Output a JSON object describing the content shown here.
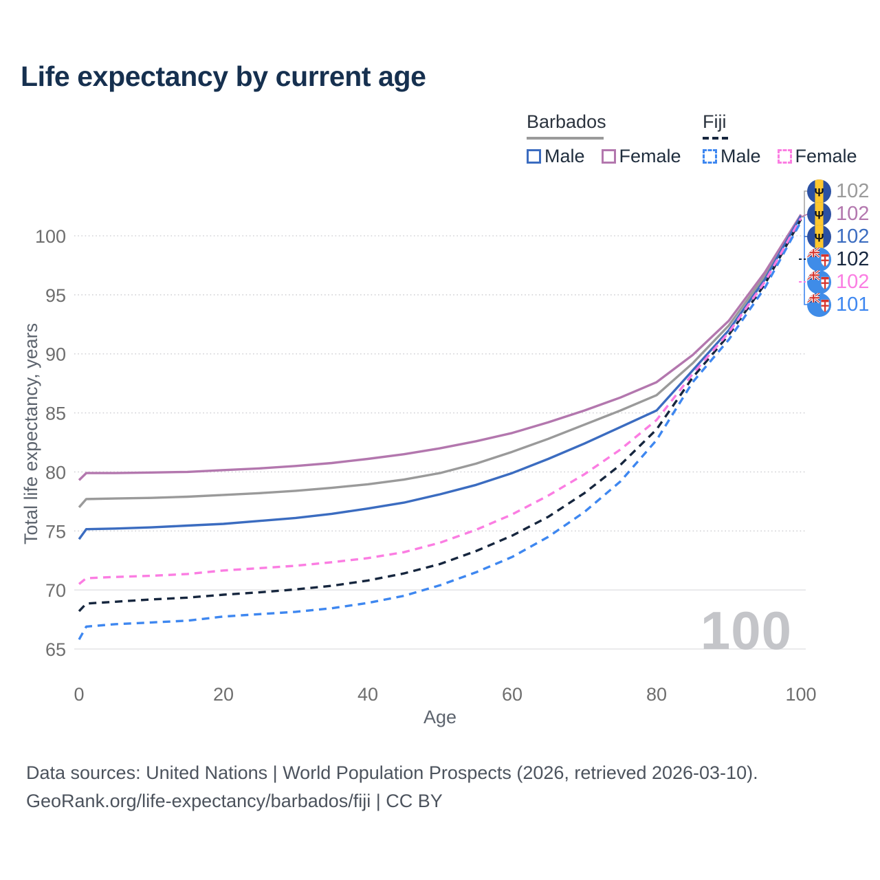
{
  "title": "Life expectancy by current age",
  "watermark": "100",
  "legend": {
    "groups": [
      {
        "label": "Barbados",
        "line_style": "solid",
        "underline_color": "#9a9a9a",
        "items": [
          {
            "label": "Male",
            "color": "#3b6cc0",
            "dashed": false
          },
          {
            "label": "Female",
            "color": "#b377ae",
            "dashed": false
          }
        ]
      },
      {
        "label": "Fiji",
        "line_style": "dashed",
        "underline_color": "#16263e",
        "items": [
          {
            "label": "Male",
            "color": "#3e87f0",
            "dashed": true
          },
          {
            "label": "Female",
            "color": "#fb7de2",
            "dashed": true
          }
        ]
      }
    ]
  },
  "chart_data": {
    "type": "line",
    "title": "Life expectancy by current age",
    "xlabel": "Age",
    "ylabel": "Total life expectancy, years",
    "xlim": [
      0,
      100
    ],
    "ylim": [
      63.5,
      103.5
    ],
    "x_ticks": [
      0,
      20,
      40,
      60,
      80,
      100
    ],
    "y_ticks": [
      65,
      70,
      75,
      80,
      85,
      90,
      95,
      100
    ],
    "grid": "horizontal",
    "legend_position": "top-right",
    "age_counter": "100",
    "x": [
      0,
      1,
      5,
      10,
      15,
      20,
      25,
      30,
      35,
      40,
      45,
      50,
      55,
      60,
      65,
      70,
      75,
      80,
      85,
      90,
      95,
      100
    ],
    "series": [
      {
        "name": "Barbados (both sexes)",
        "country": "Barbados",
        "sex": "Total",
        "color": "#9a9a9a",
        "dashed": false,
        "end_label": "102",
        "flag": "barbados",
        "values": [
          77.0,
          77.7,
          77.75,
          77.8,
          77.9,
          78.05,
          78.2,
          78.4,
          78.65,
          78.95,
          79.35,
          79.9,
          80.7,
          81.7,
          82.8,
          84.0,
          85.2,
          86.5,
          89.2,
          92.4,
          96.6,
          101.7
        ]
      },
      {
        "name": "Barbados Female",
        "country": "Barbados",
        "sex": "Female",
        "color": "#b377ae",
        "dashed": false,
        "end_label": "102",
        "flag": "barbados",
        "values": [
          79.3,
          79.9,
          79.9,
          79.95,
          80.0,
          80.15,
          80.3,
          80.5,
          80.75,
          81.1,
          81.5,
          82.0,
          82.6,
          83.3,
          84.2,
          85.2,
          86.3,
          87.6,
          89.9,
          92.8,
          96.9,
          101.8
        ]
      },
      {
        "name": "Barbados Male",
        "country": "Barbados",
        "sex": "Male",
        "color": "#3b6cc0",
        "dashed": false,
        "end_label": "102",
        "flag": "barbados",
        "values": [
          74.3,
          75.15,
          75.2,
          75.3,
          75.45,
          75.6,
          75.85,
          76.1,
          76.45,
          76.9,
          77.4,
          78.1,
          78.9,
          79.9,
          81.1,
          82.4,
          83.8,
          85.2,
          88.6,
          92.0,
          96.3,
          101.7
        ]
      },
      {
        "name": "Fiji (both sexes)",
        "country": "Fiji",
        "sex": "Total",
        "color": "#16263e",
        "dashed": true,
        "end_label": "102",
        "flag": "fiji",
        "values": [
          68.2,
          68.85,
          69.0,
          69.2,
          69.35,
          69.6,
          69.8,
          70.05,
          70.35,
          70.8,
          71.4,
          72.2,
          73.3,
          74.6,
          76.2,
          78.2,
          80.6,
          83.6,
          88.0,
          91.6,
          95.9,
          101.4
        ]
      },
      {
        "name": "Fiji Female",
        "country": "Fiji",
        "sex": "Female",
        "color": "#fb7de2",
        "dashed": true,
        "end_label": "102",
        "flag": "fiji",
        "values": [
          70.5,
          71.0,
          71.1,
          71.2,
          71.35,
          71.65,
          71.85,
          72.05,
          72.35,
          72.7,
          73.2,
          74.0,
          75.1,
          76.4,
          78.0,
          79.8,
          81.9,
          84.4,
          88.3,
          91.8,
          96.1,
          101.5
        ]
      },
      {
        "name": "Fiji Male",
        "country": "Fiji",
        "sex": "Male",
        "color": "#3e87f0",
        "dashed": true,
        "end_label": "101",
        "flag": "fiji",
        "values": [
          65.8,
          66.9,
          67.1,
          67.25,
          67.4,
          67.75,
          67.95,
          68.15,
          68.45,
          68.9,
          69.5,
          70.4,
          71.5,
          72.8,
          74.5,
          76.6,
          79.2,
          82.7,
          87.6,
          91.2,
          95.6,
          101.2
        ]
      }
    ]
  },
  "footer": {
    "line1": "Data sources: United Nations | World Population Prospects (2026, retrieved 2026-03-10).",
    "line2": "GeoRank.org/life-expectancy/barbados/fiji | CC BY"
  }
}
